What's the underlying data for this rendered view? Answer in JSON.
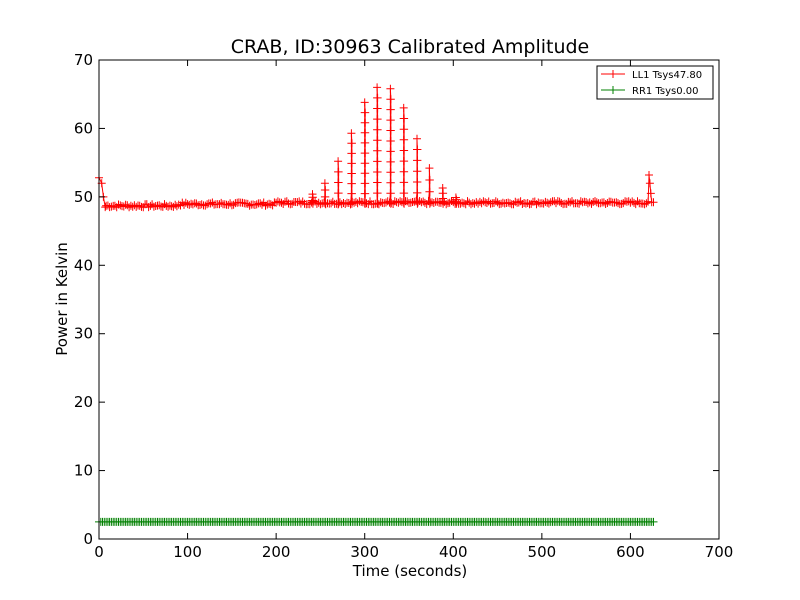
{
  "chart_data": {
    "type": "line",
    "title": "CRAB, ID:30963 Calibrated Amplitude",
    "xlabel": "Time (seconds)",
    "ylabel": "Power in Kelvin",
    "xlim": [
      0,
      700
    ],
    "ylim": [
      0,
      70
    ],
    "x_ticks": [
      0,
      100,
      200,
      300,
      400,
      500,
      600,
      700
    ],
    "y_ticks": [
      0,
      10,
      20,
      30,
      40,
      50,
      60,
      70
    ],
    "grid": false,
    "legend_position": "top-right",
    "series": [
      {
        "name": "LL1 Tsys47.80",
        "color": "#ff0000",
        "marker": "plus",
        "baseline": 49.0,
        "x_range": [
          0,
          626
        ],
        "start_points": [
          [
            0,
            52.8
          ],
          [
            3,
            52.0
          ],
          [
            5,
            50.0
          ],
          [
            7,
            48.5
          ]
        ],
        "end_points": [
          [
            620,
            49.3
          ],
          [
            621,
            53.2
          ],
          [
            622,
            52.0
          ],
          [
            623,
            50.5
          ],
          [
            624,
            49.2
          ],
          [
            626,
            49.2
          ]
        ],
        "spikes": [
          {
            "x": 241,
            "peak": 50.4
          },
          {
            "x": 255,
            "peak": 52.0
          },
          {
            "x": 270,
            "peak": 55.2
          },
          {
            "x": 285,
            "peak": 59.3
          },
          {
            "x": 300,
            "peak": 63.8
          },
          {
            "x": 314,
            "peak": 66.0
          },
          {
            "x": 329,
            "peak": 65.8
          },
          {
            "x": 344,
            "peak": 63.0
          },
          {
            "x": 359,
            "peak": 58.5
          },
          {
            "x": 373,
            "peak": 54.2
          },
          {
            "x": 388,
            "peak": 51.3
          },
          {
            "x": 403,
            "peak": 49.9
          }
        ]
      },
      {
        "name": "RR1 Tsys0.00",
        "color": "#008000",
        "marker": "plus",
        "baseline": 2.5,
        "x_range": [
          0,
          626
        ]
      }
    ]
  }
}
